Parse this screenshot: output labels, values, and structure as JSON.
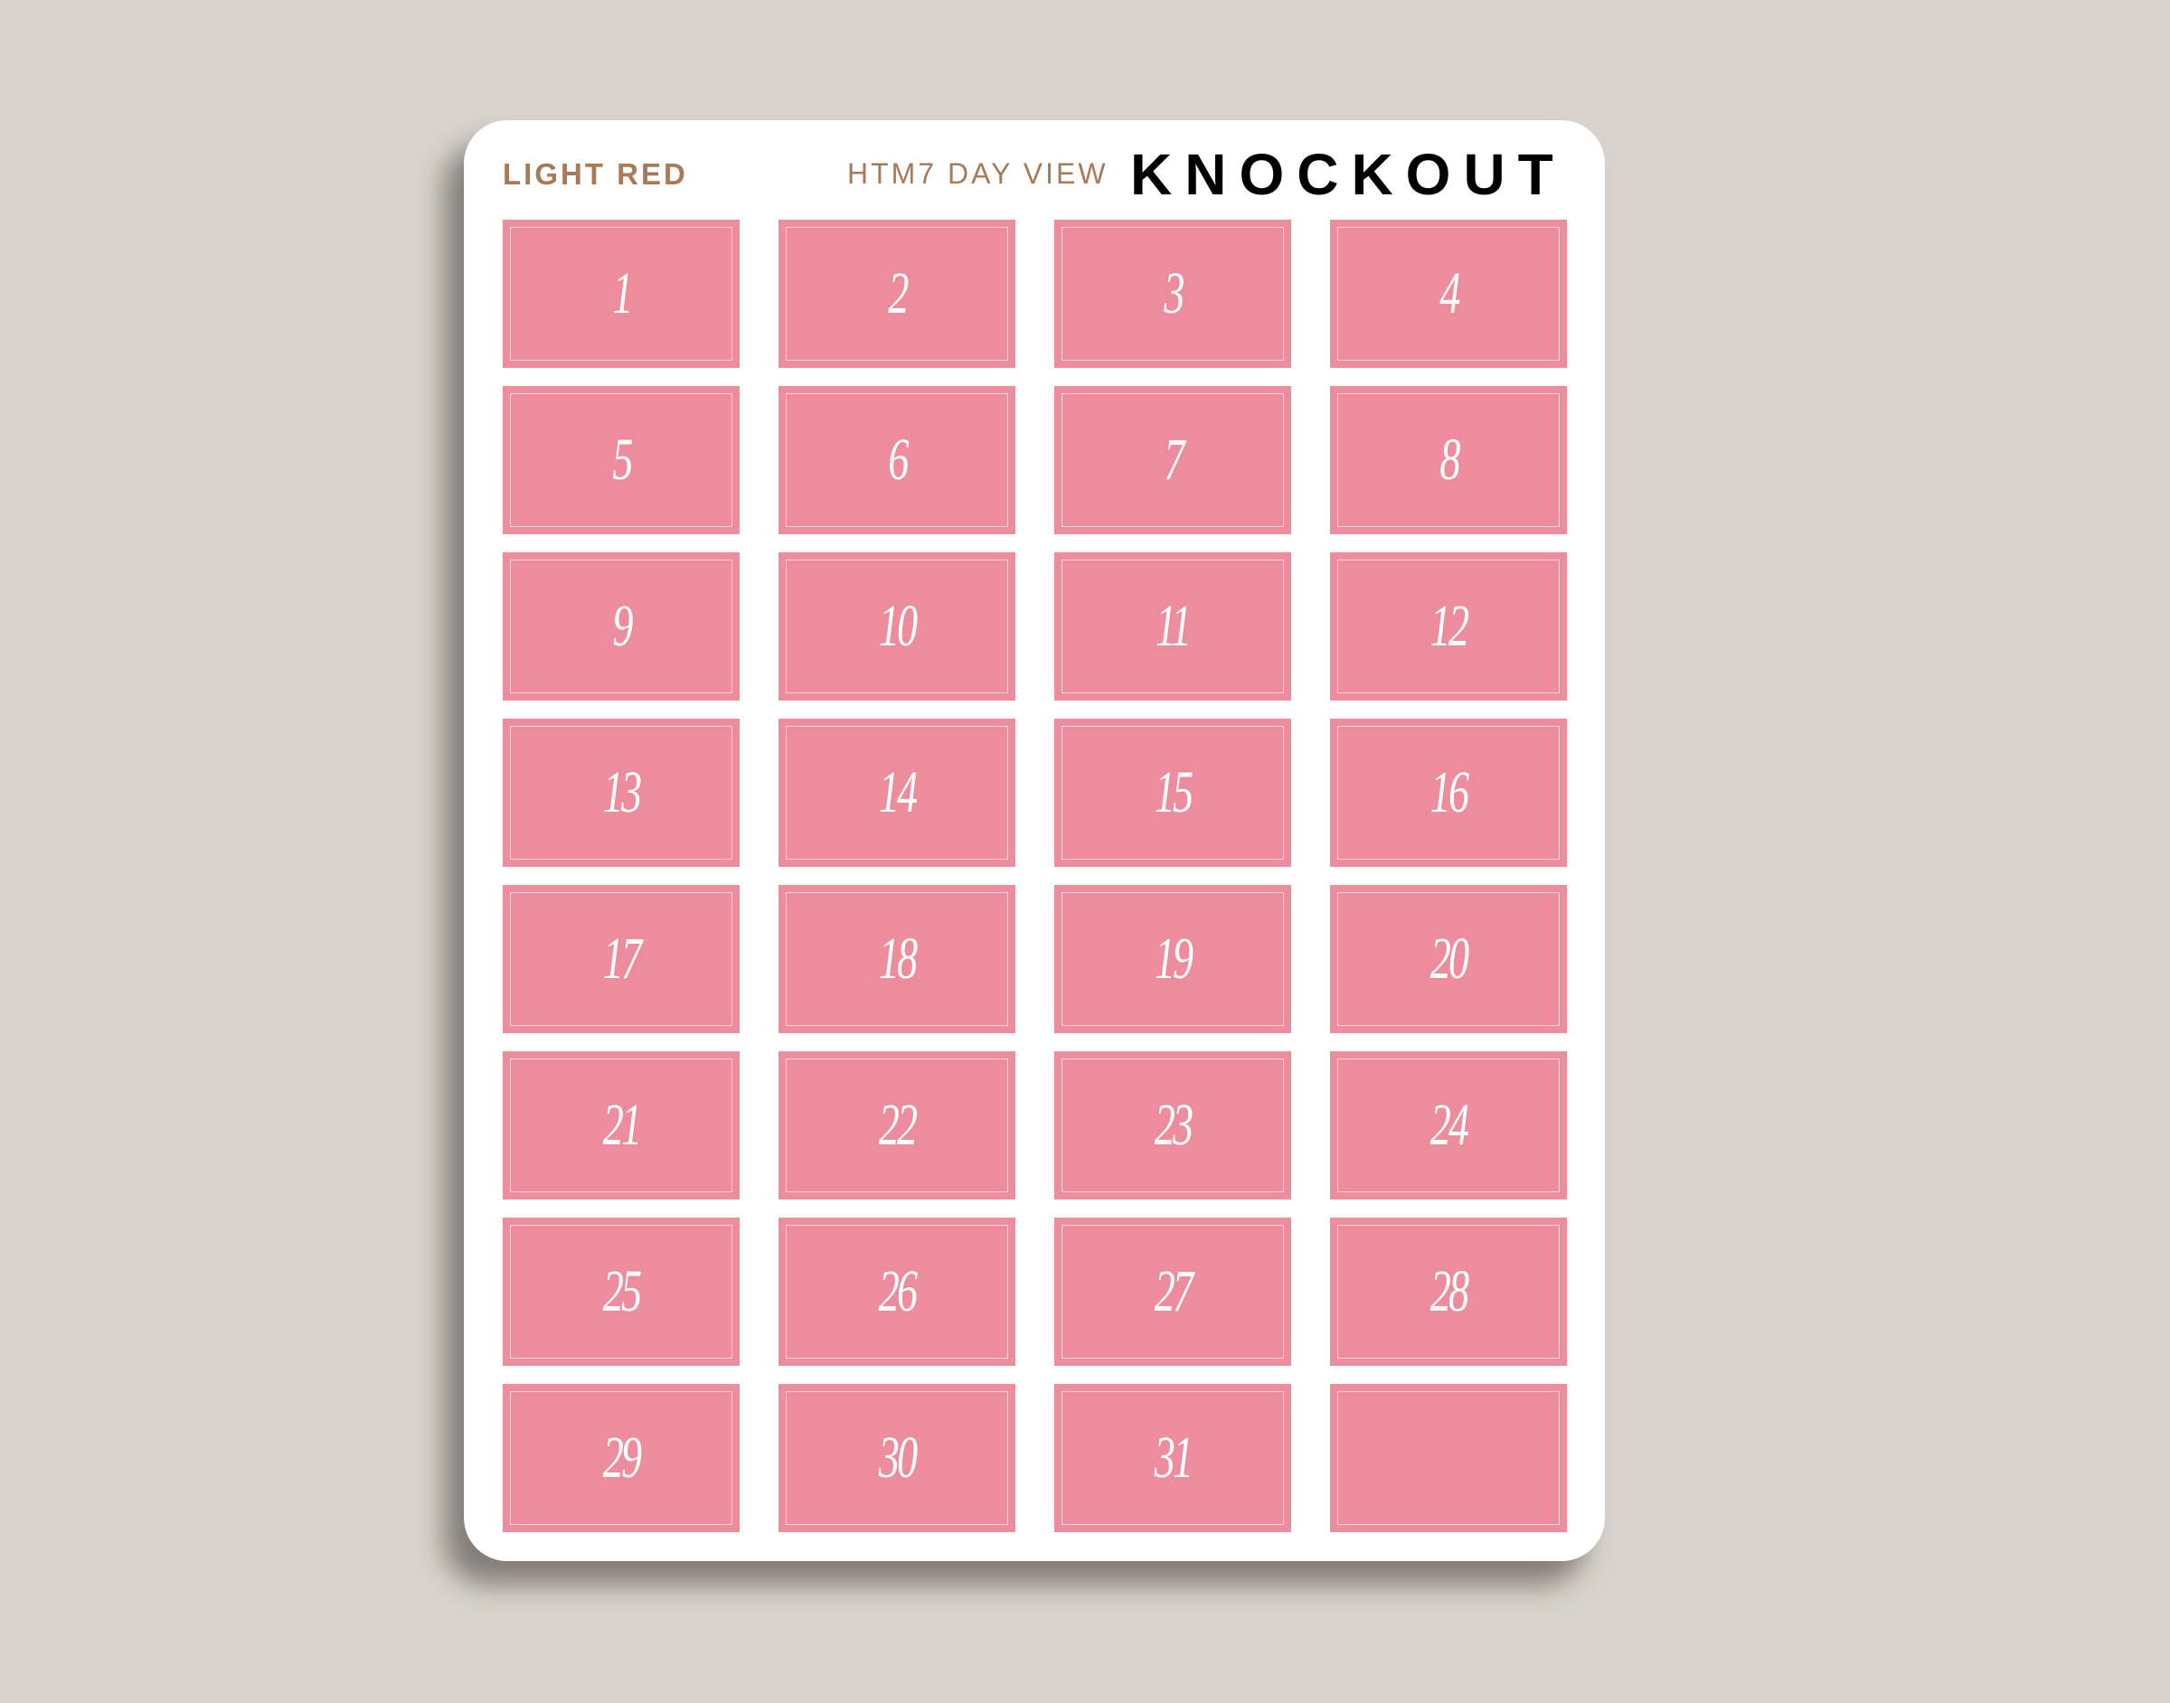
{
  "header": {
    "color_name": "LIGHT RED",
    "product": "HTM7 DAY VIEW",
    "style": "KNOCKOUT"
  },
  "colors": {
    "background": "#d8d4cd",
    "sticker": "#ec8c9c",
    "accent_text": "#a87a58"
  },
  "stickers": [
    "1",
    "2",
    "3",
    "4",
    "5",
    "6",
    "7",
    "8",
    "9",
    "10",
    "11",
    "12",
    "13",
    "14",
    "15",
    "16",
    "17",
    "18",
    "19",
    "20",
    "21",
    "22",
    "23",
    "24",
    "25",
    "26",
    "27",
    "28",
    "29",
    "30",
    "31",
    ""
  ]
}
